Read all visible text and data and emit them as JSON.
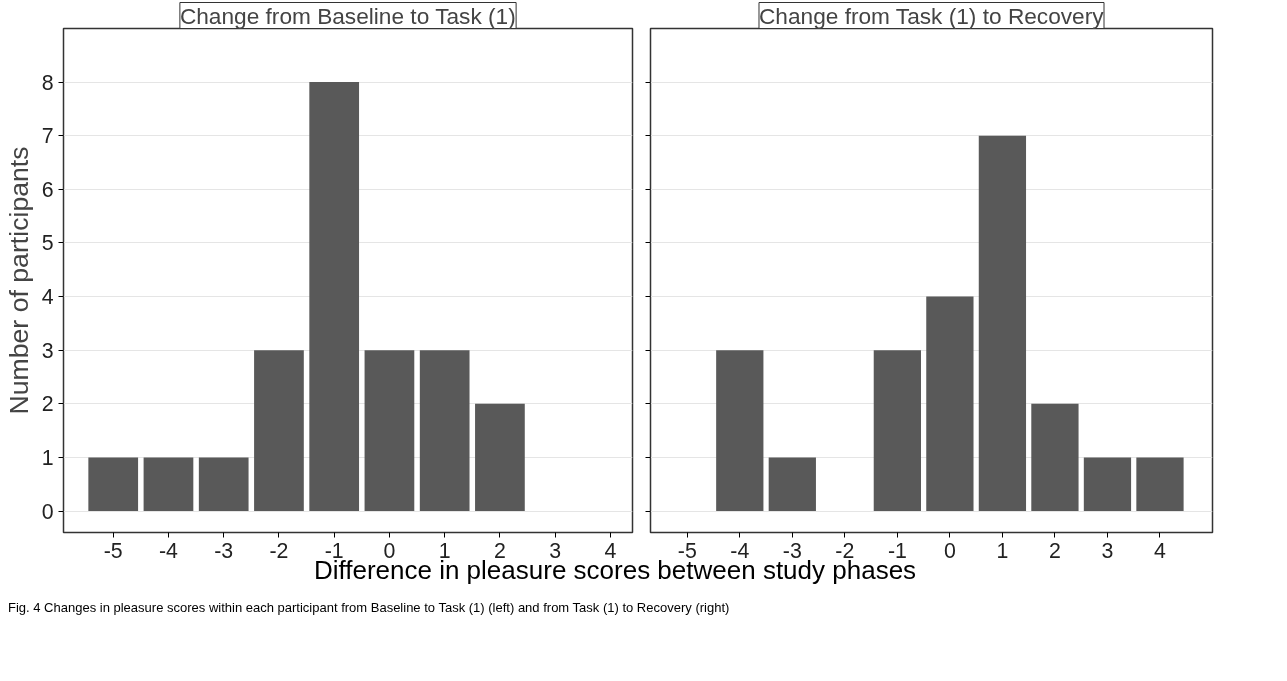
{
  "chart_data": [
    {
      "type": "bar",
      "title": "Change from Baseline to Task (1)",
      "ylabel": "Number of participants",
      "xlabel": "Difference in pleasure scores between study phases",
      "x": [
        -5,
        -4,
        -3,
        -2,
        -1,
        0,
        1,
        2
      ],
      "values": [
        1,
        1,
        1,
        3,
        8,
        3,
        3,
        2
      ],
      "color": "#595959",
      "xlim": [
        -5.9,
        4.4
      ],
      "xticks": [
        -5,
        -4,
        -3,
        -2,
        -1,
        0,
        1,
        2,
        3,
        4
      ],
      "ylim": [
        -0.4,
        9.0
      ],
      "yticks": [
        0,
        1,
        2,
        3,
        4,
        5,
        6,
        7,
        8
      ],
      "grid": "y",
      "annotations": [
        "Fig. 4 Changes in pleasure scores within each participant from Baseline to Task (1) (left) and from Task (1) to Recovery (right)"
      ]
    },
    {
      "type": "bar",
      "title": "Change from Task (1) to Recovery",
      "x": [
        -4,
        -3,
        -1,
        0,
        1,
        2,
        3,
        4
      ],
      "values": [
        3,
        1,
        3,
        4,
        7,
        2,
        1,
        1
      ],
      "color": "#595959",
      "xlim": [
        -5.7,
        5.0
      ],
      "xticks": [
        -5,
        -4,
        -3,
        -2,
        -1,
        0,
        1,
        2,
        3,
        4
      ],
      "ylim": [
        -0.4,
        9.0
      ],
      "yticks": [
        0,
        1,
        2,
        3,
        4,
        5,
        6,
        7,
        8
      ],
      "grid": "y",
      "tick_labels": "x"
    }
  ]
}
